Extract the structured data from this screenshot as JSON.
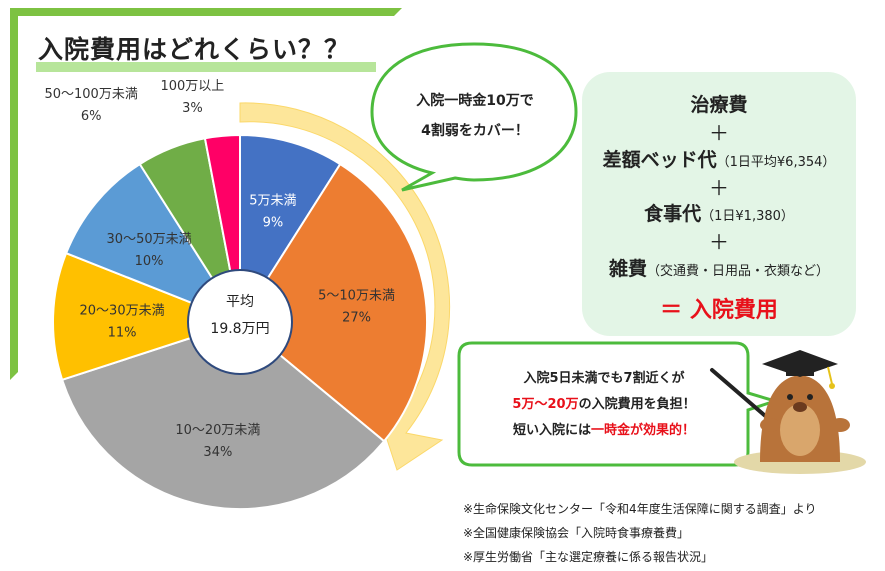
{
  "title": "入院費用はどれくらい？？",
  "center": {
    "label": "平均",
    "value": "19.8万円"
  },
  "chart_data": {
    "type": "pie",
    "title": "入院費用はどれくらい？？",
    "start_angle_deg": 0,
    "direction": "clockwise",
    "slices": [
      {
        "label": "5万未満",
        "value": 9,
        "value_label": "9%",
        "color": "#4472c4"
      },
      {
        "label": "5～10万未満",
        "value": 27,
        "value_label": "27%",
        "color": "#ed7d31"
      },
      {
        "label": "10～20万未満",
        "value": 34,
        "value_label": "34%",
        "color": "#a5a5a5"
      },
      {
        "label": "20～30万未満",
        "value": 11,
        "value_label": "11%",
        "color": "#ffc000"
      },
      {
        "label": "30～50万未満",
        "value": 10,
        "value_label": "10%",
        "color": "#5b9bd5"
      },
      {
        "label": "50～100万未満",
        "value": 6,
        "value_label": "6%",
        "color": "#70ad47"
      },
      {
        "label": "100万以上",
        "value": 3,
        "value_label": "3%",
        "color": "#ff0066"
      }
    ]
  },
  "bubble_top": {
    "line1": "入院一時金10万で",
    "line2": "4割弱をカバー！"
  },
  "formula": {
    "item1": "治療費",
    "plus": "＋",
    "item2": "差額ベッド代",
    "item2_note": "（1日平均¥6,354）",
    "item3": "食事代",
    "item3_note": "（1日¥1,380）",
    "item4": "雑費",
    "item4_note": "（交通費・日用品・衣類など）",
    "result": "＝ 入院費用"
  },
  "bubble_bottom": {
    "line1": "入院5日未満でも7割近くが",
    "line2_red": "5万～20万",
    "line2_rest": "の入院費用を負担！",
    "line3_pre": "短い入院には",
    "line3_red": "一時金が効果的！"
  },
  "notes": [
    "※生命保険文化センター「令和4年度生活保障に関する調査」より",
    "※全国健康保険協会「入院時食事療養費」",
    "※厚生労働省「主な選定療養に係る報告状況」"
  ]
}
